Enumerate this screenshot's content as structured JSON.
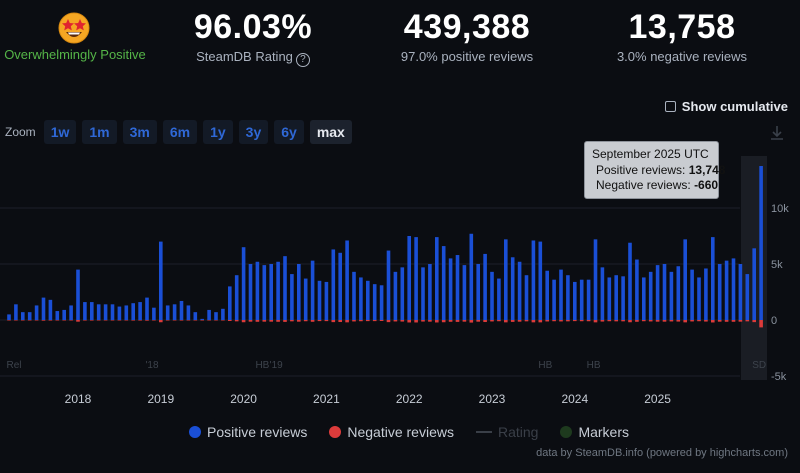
{
  "summary": {
    "rating_label": "Overwhelmingly Positive",
    "rating_value": "96.03%",
    "rating_caption": "SteamDB Rating",
    "rating_help": "?",
    "positive_count": "439,388",
    "positive_caption": "97.0% positive reviews",
    "negative_count": "13,758",
    "negative_caption": "3.0% negative reviews"
  },
  "controls": {
    "cumulative_label": "Show cumulative",
    "zoom_label": "Zoom",
    "zoom_buttons": [
      "1w",
      "1m",
      "3m",
      "6m",
      "1y",
      "3y",
      "6y",
      "max"
    ],
    "zoom_active": "max"
  },
  "tooltip": {
    "title": "September 2025 UTC",
    "positive_label": "Positive reviews:",
    "positive_value": "13,748",
    "negative_label": "Negative reviews:",
    "negative_value": "-660"
  },
  "legend": {
    "positive": "Positive reviews",
    "negative": "Negative reviews",
    "rating": "Rating",
    "markers": "Markers"
  },
  "credit": "data by SteamDB.info (powered by highcharts.com)",
  "colors": {
    "positive": "#1a4fd6",
    "negative": "#dc3b3b",
    "rating_label": "#55b548",
    "background": "#0b0d12"
  },
  "chart_data": {
    "type": "bar",
    "x_start": "2017-03",
    "interval": "month",
    "x_ticks": [
      "2018",
      "2019",
      "2020",
      "2021",
      "2022",
      "2023",
      "2024",
      "2025"
    ],
    "y_ticks": [
      "10k",
      "5k",
      "0",
      "-5k"
    ],
    "ylim": [
      -5000,
      15000
    ],
    "markers": [
      "Rel",
      "'18",
      "HB",
      "'19",
      "HB",
      "HB",
      "SD"
    ],
    "series": [
      {
        "name": "Positive reviews",
        "values": [
          500,
          1400,
          700,
          700,
          1300,
          2000,
          1800,
          800,
          900,
          1300,
          4500,
          1600,
          1600,
          1400,
          1400,
          1400,
          1200,
          1300,
          1500,
          1600,
          2000,
          1100,
          7000,
          1300,
          1400,
          1700,
          1300,
          700,
          100,
          900,
          700,
          1000,
          3000,
          4000,
          6500,
          5000,
          5200,
          4900,
          5000,
          5200,
          5700,
          4100,
          5000,
          3700,
          5300,
          3500,
          3400,
          6300,
          6000,
          7100,
          4300,
          3800,
          3500,
          3200,
          3100,
          6200,
          4300,
          4700,
          7500,
          7400,
          4700,
          5000,
          7400,
          6600,
          5500,
          5800,
          4900,
          7700,
          5000,
          5900,
          4300,
          3700,
          7200,
          5600,
          5200,
          4000,
          7100,
          7000,
          4400,
          3600,
          4500,
          4000,
          3400,
          3600,
          3600,
          7200,
          4700,
          3800,
          4000,
          3900,
          6900,
          5400,
          3800,
          4300,
          4900,
          5000,
          4300,
          4800,
          7200,
          4500,
          3800,
          4600,
          7400,
          5000,
          5300,
          5500,
          5000,
          4100,
          6400,
          13748
        ]
      },
      {
        "name": "Negative reviews",
        "values": [
          -20,
          -40,
          -20,
          -20,
          -40,
          -60,
          -50,
          -20,
          -20,
          -40,
          -150,
          -50,
          -50,
          -40,
          -40,
          -40,
          -30,
          -40,
          -50,
          -50,
          -60,
          -30,
          -200,
          -40,
          -40,
          -50,
          -40,
          -20,
          -10,
          -30,
          -20,
          -30,
          -90,
          -120,
          -200,
          -150,
          -160,
          -150,
          -150,
          -160,
          -170,
          -120,
          -150,
          -110,
          -160,
          -100,
          -100,
          -190,
          -180,
          -210,
          -130,
          -110,
          -100,
          -100,
          -90,
          -190,
          -130,
          -140,
          -220,
          -220,
          -140,
          -150,
          -220,
          -200,
          -160,
          -170,
          -150,
          -230,
          -150,
          -180,
          -130,
          -110,
          -210,
          -170,
          -150,
          -120,
          -210,
          -210,
          -130,
          -110,
          -130,
          -120,
          -100,
          -110,
          -110,
          -210,
          -140,
          -110,
          -120,
          -120,
          -200,
          -160,
          -110,
          -130,
          -150,
          -150,
          -130,
          -140,
          -210,
          -130,
          -110,
          -140,
          -220,
          -150,
          -160,
          -160,
          -150,
          -120,
          -190,
          -660
        ]
      }
    ]
  }
}
